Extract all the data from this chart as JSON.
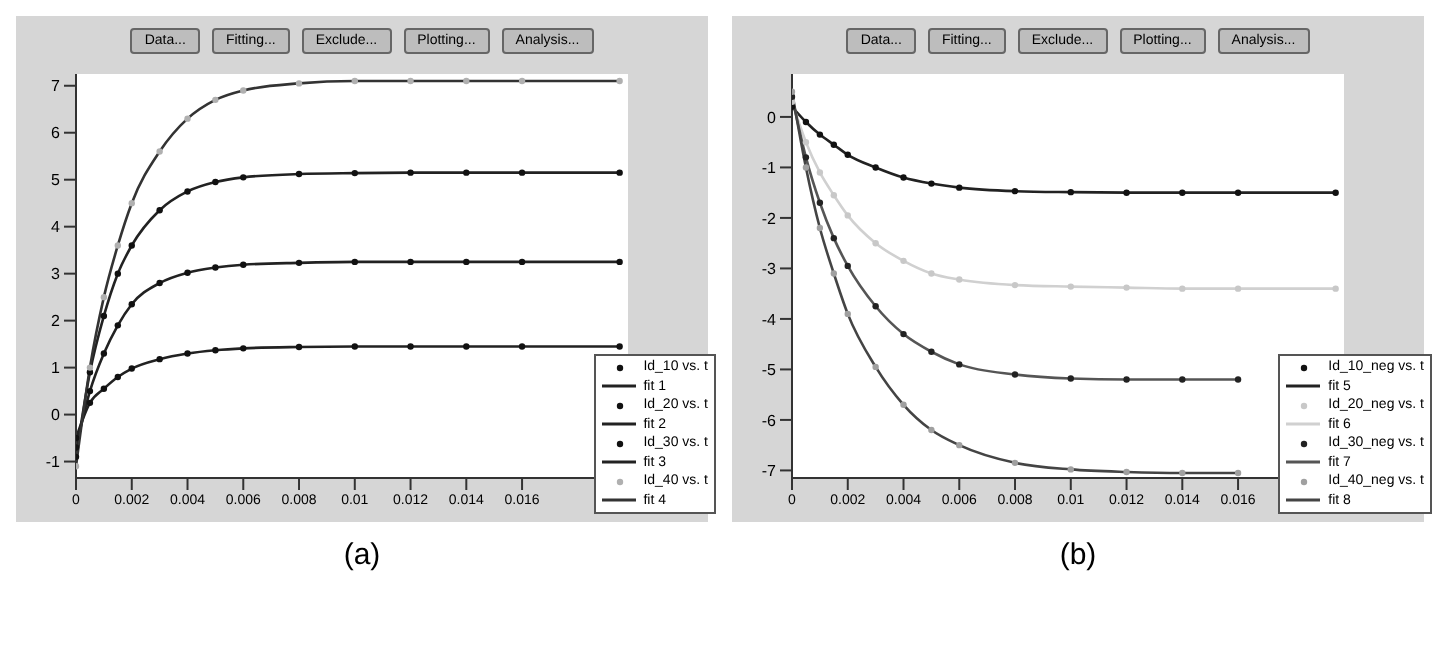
{
  "chart_data": [
    {
      "type": "line",
      "title": "(a)",
      "annotations": [
        "Data...",
        "Fitting...",
        "Exclude...",
        "Plotting...",
        "Analysis..."
      ],
      "x": [
        0,
        0.0005,
        0.001,
        0.0015,
        0.002,
        0.003,
        0.004,
        0.005,
        0.006,
        0.008,
        0.01,
        0.012,
        0.014,
        0.016,
        0.0195
      ],
      "series": [
        {
          "name": "Id_10 vs. t",
          "type": "scatter",
          "color": "#111111",
          "values": [
            -0.5,
            0.25,
            0.55,
            0.8,
            0.98,
            1.18,
            1.3,
            1.37,
            1.41,
            1.44,
            1.45,
            1.45,
            1.45,
            1.45,
            1.45
          ]
        },
        {
          "name": "fit 1",
          "type": "line",
          "color": "#222222",
          "values": [
            -0.5,
            0.25,
            0.55,
            0.8,
            0.98,
            1.18,
            1.3,
            1.37,
            1.41,
            1.44,
            1.45,
            1.45,
            1.45,
            1.45,
            1.45
          ]
        },
        {
          "name": "Id_20 vs. t",
          "type": "scatter",
          "color": "#111111",
          "values": [
            -0.7,
            0.5,
            1.3,
            1.9,
            2.35,
            2.8,
            3.02,
            3.13,
            3.19,
            3.23,
            3.25,
            3.25,
            3.25,
            3.25,
            3.25
          ]
        },
        {
          "name": "fit 2",
          "type": "line",
          "color": "#222222",
          "values": [
            -0.7,
            0.5,
            1.3,
            1.9,
            2.35,
            2.8,
            3.02,
            3.13,
            3.19,
            3.23,
            3.25,
            3.25,
            3.25,
            3.25,
            3.25
          ]
        },
        {
          "name": "Id_30 vs. t",
          "type": "scatter",
          "color": "#111111",
          "values": [
            -0.9,
            0.9,
            2.1,
            3.0,
            3.6,
            4.35,
            4.75,
            4.95,
            5.05,
            5.12,
            5.14,
            5.15,
            5.15,
            5.15,
            5.15
          ]
        },
        {
          "name": "fit 3",
          "type": "line",
          "color": "#222222",
          "values": [
            -0.9,
            0.9,
            2.1,
            3.0,
            3.6,
            4.35,
            4.75,
            4.95,
            5.05,
            5.12,
            5.14,
            5.15,
            5.15,
            5.15,
            5.15
          ]
        },
        {
          "name": "Id_40 vs. t",
          "type": "scatter",
          "color": "#b0b0b0",
          "values": [
            -1.1,
            1.0,
            2.5,
            3.6,
            4.5,
            5.6,
            6.3,
            6.7,
            6.9,
            7.05,
            7.1,
            7.1,
            7.1,
            7.1,
            7.1
          ]
        },
        {
          "name": "fit 4",
          "type": "line",
          "color": "#333333",
          "values": [
            -1.1,
            1.0,
            2.5,
            3.6,
            4.5,
            5.6,
            6.3,
            6.7,
            6.9,
            7.05,
            7.1,
            7.1,
            7.1,
            7.1,
            7.1
          ]
        }
      ],
      "xlim": [
        0,
        0.0198
      ],
      "xticks": [
        0,
        0.002,
        0.004,
        0.006,
        0.008,
        0.01,
        0.012,
        0.014,
        0.016
      ],
      "ylim": [
        -1.35,
        7.25
      ],
      "yticks": [
        -1,
        0,
        1,
        2,
        3,
        4,
        5,
        6,
        7
      ],
      "legend": "bottom right"
    },
    {
      "type": "line",
      "title": "(b)",
      "annotations": [
        "Data...",
        "Fitting...",
        "Exclude...",
        "Plotting...",
        "Analysis..."
      ],
      "x": [
        0,
        0.0005,
        0.001,
        0.0015,
        0.002,
        0.003,
        0.004,
        0.005,
        0.006,
        0.008,
        0.01,
        0.012,
        0.014,
        0.016,
        0.0195
      ],
      "series": [
        {
          "name": "Id_10_neg vs. t",
          "type": "scatter",
          "color": "#111111",
          "values": [
            0.2,
            -0.1,
            -0.35,
            -0.55,
            -0.75,
            -1.0,
            -1.2,
            -1.32,
            -1.4,
            -1.47,
            -1.49,
            -1.5,
            -1.5,
            -1.5,
            -1.5
          ]
        },
        {
          "name": "fit 5",
          "type": "line",
          "color": "#222222",
          "values": [
            0.2,
            -0.1,
            -0.35,
            -0.55,
            -0.75,
            -1.0,
            -1.2,
            -1.32,
            -1.4,
            -1.47,
            -1.49,
            -1.5,
            -1.5,
            -1.5,
            -1.5
          ]
        },
        {
          "name": "Id_20_neg vs. t",
          "type": "scatter",
          "color": "#c8c8c8",
          "values": [
            0.3,
            -0.5,
            -1.1,
            -1.55,
            -1.95,
            -2.5,
            -2.85,
            -3.1,
            -3.22,
            -3.33,
            -3.36,
            -3.38,
            -3.4,
            -3.4,
            -3.4
          ]
        },
        {
          "name": "fit 6",
          "type": "line",
          "color": "#d0d0d0",
          "values": [
            0.3,
            -0.5,
            -1.1,
            -1.55,
            -1.95,
            -2.5,
            -2.85,
            -3.1,
            -3.22,
            -3.33,
            -3.36,
            -3.38,
            -3.4,
            -3.4,
            -3.4
          ]
        },
        {
          "name": "Id_30_neg vs. t",
          "type": "scatter",
          "color": "#222222",
          "values": [
            0.4,
            -0.8,
            -1.7,
            -2.4,
            -2.95,
            -3.75,
            -4.3,
            -4.65,
            -4.9,
            -5.1,
            -5.18,
            -5.2,
            -5.2,
            -5.2,
            null
          ]
        },
        {
          "name": "fit 7",
          "type": "line",
          "color": "#555555",
          "values": [
            0.4,
            -0.8,
            -1.7,
            -2.4,
            -2.95,
            -3.75,
            -4.3,
            -4.65,
            -4.9,
            -5.1,
            -5.18,
            -5.2,
            -5.2,
            -5.2,
            null
          ]
        },
        {
          "name": "Id_40_neg vs. t",
          "type": "scatter",
          "color": "#a0a0a0",
          "values": [
            0.5,
            -1.0,
            -2.2,
            -3.1,
            -3.9,
            -4.95,
            -5.7,
            -6.2,
            -6.5,
            -6.85,
            -6.98,
            -7.03,
            -7.05,
            -7.05,
            null
          ]
        },
        {
          "name": "fit 8",
          "type": "line",
          "color": "#444444",
          "values": [
            0.5,
            -1.0,
            -2.2,
            -3.1,
            -3.9,
            -4.95,
            -5.7,
            -6.2,
            -6.5,
            -6.85,
            -6.98,
            -7.03,
            -7.05,
            -7.05,
            null
          ]
        }
      ],
      "xlim": [
        0,
        0.0198
      ],
      "xticks": [
        0,
        0.002,
        0.004,
        0.006,
        0.008,
        0.01,
        0.012,
        0.014,
        0.016
      ],
      "ylim": [
        -7.15,
        0.85
      ],
      "yticks": [
        -7,
        -6,
        -5,
        -4,
        -3,
        -2,
        -1,
        0
      ],
      "legend": "bottom right"
    }
  ]
}
